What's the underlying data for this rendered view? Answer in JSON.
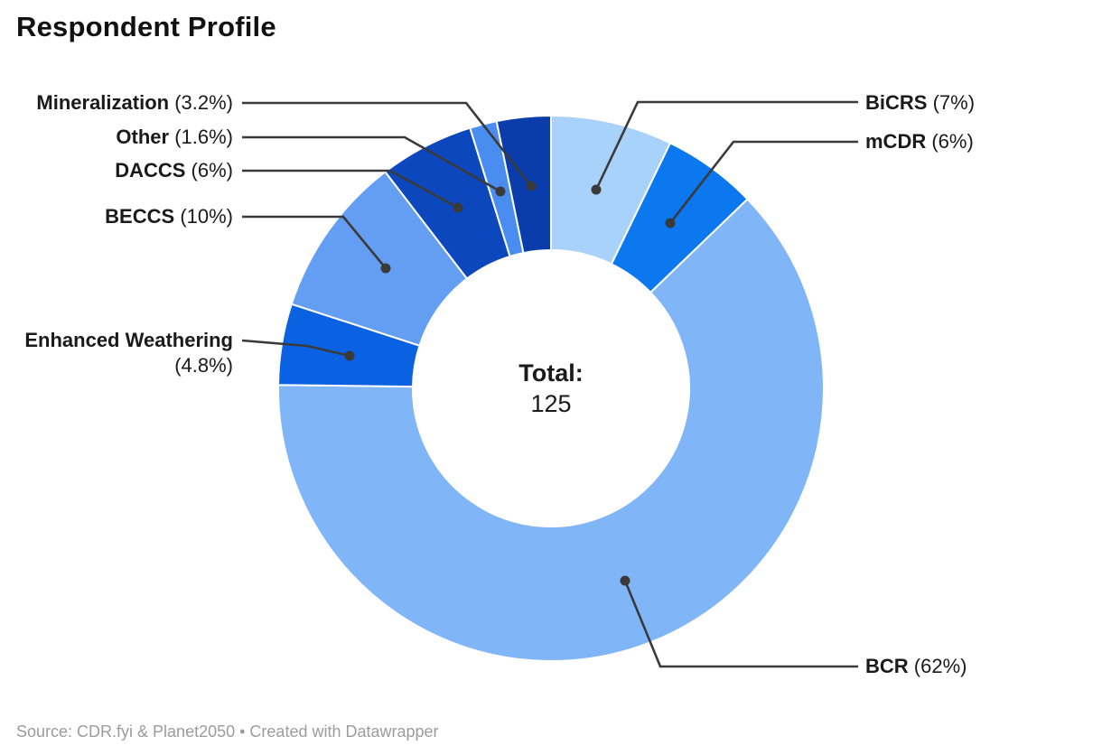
{
  "title": "Respondent Profile",
  "footer": "Source: CDR.fyi & Planet2050 • Created with Datawrapper",
  "center": {
    "label": "Total:",
    "value": "125"
  },
  "chart_data": {
    "type": "pie",
    "subtype": "donut",
    "title": "Respondent Profile",
    "total": 125,
    "center_text": [
      "Total:",
      "125"
    ],
    "start_angle_deg": 0,
    "direction": "clockwise",
    "leader_color": "#3a3a3a",
    "segments": [
      {
        "label": "BiCRS",
        "pct_display": "(7%)",
        "pct": 7,
        "est_pct_exact": 7.2,
        "color": "#A9D2FA"
      },
      {
        "label": "mCDR",
        "pct_display": "(6%)",
        "pct": 6,
        "est_pct_exact": 5.6,
        "color": "#0B78F0"
      },
      {
        "label": "BCR",
        "pct_display": "(62%)",
        "pct": 62,
        "est_pct_exact": 62.4,
        "color": "#80B6F8"
      },
      {
        "label": "Enhanced Weathering",
        "pct_display": "(4.8%)",
        "pct": 4.8,
        "est_pct_exact": 4.8,
        "color": "#0A62E2"
      },
      {
        "label": "BECCS",
        "pct_display": "(10%)",
        "pct": 10,
        "est_pct_exact": 9.6,
        "color": "#649EF3"
      },
      {
        "label": "DACCS",
        "pct_display": "(6%)",
        "pct": 6,
        "est_pct_exact": 5.6,
        "color": "#0D47BE"
      },
      {
        "label": "Other",
        "pct_display": "(1.6%)",
        "pct": 1.6,
        "est_pct_exact": 1.6,
        "color": "#4A8DF0"
      },
      {
        "label": "Mineralization",
        "pct_display": "(3.2%)",
        "pct": 3.2,
        "est_pct_exact": 3.2,
        "color": "#0A3CAB"
      }
    ]
  }
}
